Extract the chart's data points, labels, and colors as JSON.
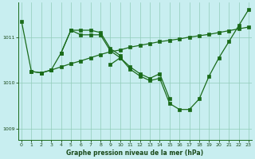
{
  "xlabel": "Graphe pression niveau de la mer (hPa)",
  "background_color": "#c8eef0",
  "grid_color": "#90ccb8",
  "line_color": "#1a6b1a",
  "ylim": [
    1008.75,
    1011.75
  ],
  "xlim": [
    -0.3,
    23.3
  ],
  "yticks": [
    1009,
    1010,
    1011
  ],
  "xticks": [
    0,
    1,
    2,
    3,
    4,
    5,
    6,
    7,
    8,
    9,
    10,
    11,
    12,
    13,
    14,
    15,
    16,
    17,
    18,
    19,
    20,
    21,
    22,
    23
  ],
  "lines": [
    {
      "x": [
        0,
        1,
        2,
        3,
        4,
        5,
        6,
        7,
        8,
        9,
        10,
        11,
        12,
        13,
        14,
        15,
        16,
        17,
        18,
        19,
        20,
        21,
        22,
        23
      ],
      "y": [
        1011.35,
        1010.25,
        1010.22,
        1010.28,
        1010.35,
        1010.42,
        1010.48,
        1010.55,
        1010.62,
        1010.68,
        1010.72,
        1010.78,
        1010.82,
        1010.86,
        1010.9,
        1010.93,
        1010.96,
        1011.0,
        1011.03,
        1011.06,
        1011.1,
        1011.14,
        1011.18,
        1011.22
      ]
    },
    {
      "x": [
        1,
        2,
        3,
        4,
        5,
        6,
        7,
        8,
        9,
        10
      ],
      "y": [
        1010.25,
        1010.22,
        1010.28,
        1010.65,
        1011.15,
        1011.15,
        1011.15,
        1011.1,
        1010.75,
        1010.6
      ]
    },
    {
      "x": [
        4,
        5,
        6,
        7,
        8,
        9,
        10,
        11,
        12,
        13,
        14,
        15
      ],
      "y": [
        1010.65,
        1011.15,
        1011.05,
        1011.05,
        1011.05,
        1010.7,
        1010.55,
        1010.35,
        1010.2,
        1010.1,
        1010.2,
        1009.65
      ]
    },
    {
      "x": [
        9,
        10,
        11,
        12,
        13,
        14,
        15,
        16,
        17,
        18,
        19,
        20,
        21,
        22,
        23
      ],
      "y": [
        1010.4,
        1010.55,
        1010.3,
        1010.15,
        1010.05,
        1010.1,
        1009.55,
        1009.42,
        1009.42,
        1009.65,
        1010.15,
        1010.55,
        1010.9,
        1011.25,
        1011.6
      ]
    }
  ]
}
